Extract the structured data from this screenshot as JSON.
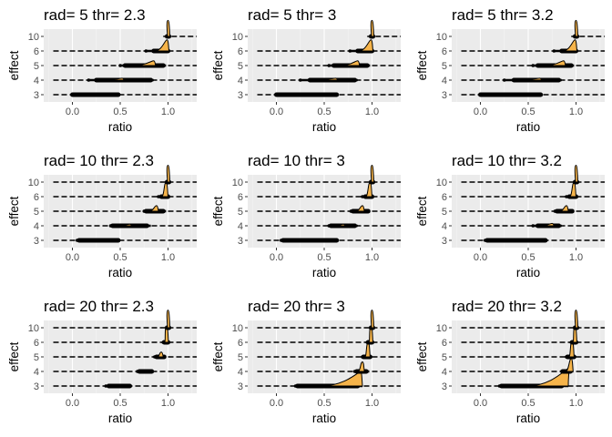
{
  "chart_data": {
    "type": "ridgeline",
    "panels": [
      {
        "title": "rad= 5 thr= 2.3",
        "ridges": [
          {
            "category": "3",
            "start": -0.2,
            "min": 0.0,
            "max": 0.5,
            "core": [
              0.0,
              0.48
            ],
            "mode": null,
            "peak": 0
          },
          {
            "category": "4",
            "start": -0.2,
            "min": 0.17,
            "max": 0.85,
            "core": [
              0.25,
              0.82
            ],
            "mode": 0.52,
            "peak": 0.12
          },
          {
            "category": "5",
            "start": -0.2,
            "min": 0.5,
            "max": 0.98,
            "core": [
              0.55,
              0.95
            ],
            "mode": 0.85,
            "peak": 0.3
          },
          {
            "category": "6",
            "start": -0.2,
            "min": 0.77,
            "max": 1.02,
            "core": [
              0.85,
              1.0
            ],
            "mode": 0.99,
            "peak": 0.7
          },
          {
            "category": "10",
            "start": 0.95,
            "min": 0.99,
            "max": 1.02,
            "core": [
              0.99,
              1.01
            ],
            "mode": 1.0,
            "peak": 1.0
          }
        ]
      },
      {
        "title": "rad= 5 thr= 3",
        "ridges": [
          {
            "category": "3",
            "start": -0.2,
            "min": 0.0,
            "max": 0.65,
            "core": [
              0.0,
              0.63
            ],
            "mode": null,
            "peak": 0
          },
          {
            "category": "4",
            "start": -0.2,
            "min": 0.25,
            "max": 0.85,
            "core": [
              0.35,
              0.82
            ],
            "mode": 0.62,
            "peak": 0.12
          },
          {
            "category": "5",
            "start": -0.2,
            "min": 0.55,
            "max": 0.98,
            "core": [
              0.6,
              0.95
            ],
            "mode": 0.85,
            "peak": 0.3
          },
          {
            "category": "6",
            "start": -0.2,
            "min": 0.77,
            "max": 1.02,
            "core": [
              0.85,
              1.0
            ],
            "mode": 0.99,
            "peak": 0.7
          },
          {
            "category": "10",
            "start": 0.95,
            "min": 0.99,
            "max": 1.02,
            "core": [
              0.99,
              1.01
            ],
            "mode": 1.0,
            "peak": 1.0
          }
        ]
      },
      {
        "title": "rad= 5 thr= 3.2",
        "ridges": [
          {
            "category": "3",
            "start": -0.2,
            "min": 0.0,
            "max": 0.65,
            "core": [
              0.0,
              0.63
            ],
            "mode": null,
            "peak": 0
          },
          {
            "category": "4",
            "start": -0.2,
            "min": 0.25,
            "max": 0.85,
            "core": [
              0.35,
              0.82
            ],
            "mode": 0.62,
            "peak": 0.12
          },
          {
            "category": "5",
            "start": -0.2,
            "min": 0.55,
            "max": 0.98,
            "core": [
              0.6,
              0.95
            ],
            "mode": 0.87,
            "peak": 0.3
          },
          {
            "category": "6",
            "start": -0.2,
            "min": 0.77,
            "max": 1.02,
            "core": [
              0.85,
              1.0
            ],
            "mode": 0.99,
            "peak": 0.7
          },
          {
            "category": "10",
            "start": 0.95,
            "min": 0.99,
            "max": 1.02,
            "core": [
              0.99,
              1.01
            ],
            "mode": 1.0,
            "peak": 1.0
          }
        ]
      },
      {
        "title": "rad= 10 thr= 2.3",
        "ridges": [
          {
            "category": "3",
            "start": -0.2,
            "min": 0.05,
            "max": 0.5,
            "core": [
              0.07,
              0.48
            ],
            "mode": null,
            "peak": 0
          },
          {
            "category": "4",
            "start": -0.2,
            "min": 0.4,
            "max": 0.82,
            "core": [
              0.42,
              0.78
            ],
            "mode": 0.6,
            "peak": 0.1
          },
          {
            "category": "5",
            "start": -0.2,
            "min": 0.75,
            "max": 0.98,
            "core": [
              0.77,
              0.95
            ],
            "mode": 0.88,
            "peak": 0.35
          },
          {
            "category": "6",
            "start": -0.2,
            "min": 0.9,
            "max": 1.02,
            "core": [
              0.93,
              1.0
            ],
            "mode": 0.98,
            "peak": 0.9
          },
          {
            "category": "10",
            "start": -0.2,
            "min": 0.99,
            "max": 1.02,
            "core": [
              0.99,
              1.01
            ],
            "mode": 1.0,
            "peak": 1.05
          }
        ]
      },
      {
        "title": "rad= 10 thr= 3",
        "ridges": [
          {
            "category": "3",
            "start": -0.2,
            "min": 0.05,
            "max": 0.65,
            "core": [
              0.07,
              0.63
            ],
            "mode": null,
            "peak": 0
          },
          {
            "category": "4",
            "start": -0.2,
            "min": 0.55,
            "max": 0.85,
            "core": [
              0.57,
              0.82
            ],
            "mode": 0.7,
            "peak": 0.1
          },
          {
            "category": "5",
            "start": -0.2,
            "min": 0.78,
            "max": 0.98,
            "core": [
              0.8,
              0.96
            ],
            "mode": 0.9,
            "peak": 0.35
          },
          {
            "category": "6",
            "start": -0.2,
            "min": 0.9,
            "max": 1.02,
            "core": [
              0.93,
              1.0
            ],
            "mode": 0.98,
            "peak": 0.9
          },
          {
            "category": "10",
            "start": -0.2,
            "min": 0.99,
            "max": 1.02,
            "core": [
              0.99,
              1.01
            ],
            "mode": 1.0,
            "peak": 1.05
          }
        ]
      },
      {
        "title": "rad= 10 thr= 3.2",
        "ridges": [
          {
            "category": "3",
            "start": -0.2,
            "min": 0.05,
            "max": 0.7,
            "core": [
              0.07,
              0.68
            ],
            "mode": null,
            "peak": 0
          },
          {
            "category": "4",
            "start": -0.2,
            "min": 0.55,
            "max": 0.85,
            "core": [
              0.6,
              0.82
            ],
            "mode": 0.75,
            "peak": 0.15
          },
          {
            "category": "5",
            "start": -0.2,
            "min": 0.78,
            "max": 0.98,
            "core": [
              0.8,
              0.96
            ],
            "mode": 0.9,
            "peak": 0.35
          },
          {
            "category": "6",
            "start": -0.2,
            "min": 0.9,
            "max": 1.02,
            "core": [
              0.93,
              1.0
            ],
            "mode": 0.98,
            "peak": 0.9
          },
          {
            "category": "10",
            "start": -0.2,
            "min": 0.99,
            "max": 1.02,
            "core": [
              0.99,
              1.01
            ],
            "mode": 1.0,
            "peak": 1.05
          }
        ]
      },
      {
        "title": "rad= 20 thr= 2.3",
        "ridges": [
          {
            "category": "3",
            "start": -0.2,
            "min": 0.35,
            "max": 0.62,
            "core": [
              0.38,
              0.6
            ],
            "mode": null,
            "peak": 0
          },
          {
            "category": "4",
            "start": -0.2,
            "min": 0.68,
            "max": 0.85,
            "core": [
              0.7,
              0.83
            ],
            "mode": null,
            "peak": 0
          },
          {
            "category": "5",
            "start": -0.2,
            "min": 0.86,
            "max": 0.98,
            "core": [
              0.88,
              0.96
            ],
            "mode": 0.93,
            "peak": 0.3
          },
          {
            "category": "6",
            "start": -0.2,
            "min": 0.95,
            "max": 1.02,
            "core": [
              0.96,
              1.0
            ],
            "mode": 0.985,
            "peak": 1.0
          },
          {
            "category": "10",
            "start": -0.2,
            "min": 0.99,
            "max": 1.02,
            "core": [
              0.99,
              1.01
            ],
            "mode": 1.0,
            "peak": 1.1
          }
        ]
      },
      {
        "title": "rad= 20 thr= 3",
        "ridges": [
          {
            "category": "3",
            "start": -0.2,
            "min": 0.2,
            "max": 0.9,
            "core": [
              0.22,
              0.85
            ],
            "mode": 0.88,
            "peak": 0.9
          },
          {
            "category": "4",
            "start": -0.2,
            "min": 0.82,
            "max": 0.97,
            "core": [
              0.84,
              0.94
            ],
            "mode": 0.9,
            "peak": 0.6
          },
          {
            "category": "5",
            "start": -0.2,
            "min": 0.9,
            "max": 0.99,
            "core": [
              0.91,
              0.98
            ],
            "mode": 0.96,
            "peak": 0.9
          },
          {
            "category": "6",
            "start": -0.2,
            "min": 0.95,
            "max": 1.02,
            "core": [
              0.96,
              1.0
            ],
            "mode": 0.99,
            "peak": 1.0
          },
          {
            "category": "10",
            "start": -0.2,
            "min": 0.99,
            "max": 1.02,
            "core": [
              0.99,
              1.01
            ],
            "mode": 1.0,
            "peak": 1.1
          }
        ]
      },
      {
        "title": "rad= 20 thr= 3.2",
        "ridges": [
          {
            "category": "3",
            "start": -0.2,
            "min": 0.2,
            "max": 0.92,
            "core": [
              0.22,
              0.85
            ],
            "mode": 0.92,
            "peak": 1.1
          },
          {
            "category": "4",
            "start": -0.2,
            "min": 0.85,
            "max": 0.97,
            "core": [
              0.86,
              0.94
            ],
            "mode": 0.95,
            "peak": 0.8
          },
          {
            "category": "5",
            "start": -0.2,
            "min": 0.9,
            "max": 0.99,
            "core": [
              0.91,
              0.98
            ],
            "mode": 0.96,
            "peak": 1.0
          },
          {
            "category": "6",
            "start": -0.2,
            "min": 0.95,
            "max": 1.02,
            "core": [
              0.96,
              1.0
            ],
            "mode": 0.99,
            "peak": 1.0
          },
          {
            "category": "10",
            "start": -0.2,
            "min": 0.99,
            "max": 1.02,
            "core": [
              0.99,
              1.01
            ],
            "mode": 1.0,
            "peak": 1.1
          }
        ]
      }
    ],
    "xlabel": "ratio",
    "ylabel": "effect",
    "x_ticks": [
      0.0,
      0.5,
      1.0
    ],
    "x_tick_labels": [
      "0.0",
      "0.5",
      "1.0"
    ],
    "xlim": [
      -0.3,
      1.3
    ],
    "y_categories": [
      "3",
      "4",
      "5",
      "6",
      "10"
    ],
    "grid": true,
    "legend": "none",
    "colors": {
      "panel_background": "#ebebeb",
      "grid_major": "#ffffff",
      "grid_minor": "#f5f5f5",
      "fill": "#f6b44a",
      "ink": "#000000",
      "tick_label": "#4d4d4d",
      "tick_mark": "#333333"
    }
  }
}
